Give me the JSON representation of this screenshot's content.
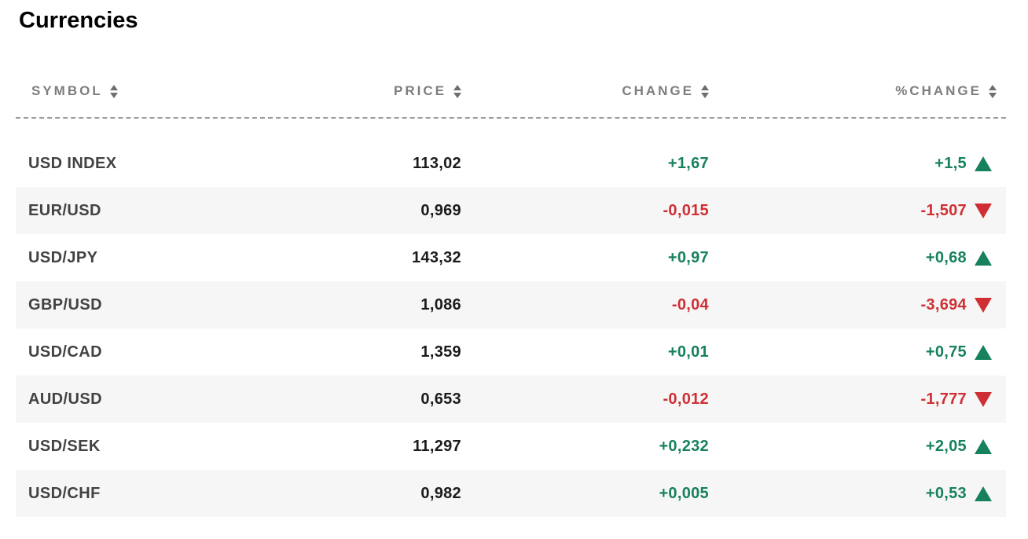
{
  "page": {
    "title": "Currencies"
  },
  "table": {
    "columns": [
      {
        "label": "SYMBOL",
        "sortable": true
      },
      {
        "label": "PRICE",
        "sortable": true
      },
      {
        "label": "CHANGE",
        "sortable": true
      },
      {
        "label": "%CHANGE",
        "sortable": true
      }
    ],
    "rows": [
      {
        "symbol": "USD INDEX",
        "price": "113,02",
        "change": "+1,67",
        "pct_change": "+1,5",
        "direction": "up"
      },
      {
        "symbol": "EUR/USD",
        "price": "0,969",
        "change": "-0,015",
        "pct_change": "-1,507",
        "direction": "down"
      },
      {
        "symbol": "USD/JPY",
        "price": "143,32",
        "change": "+0,97",
        "pct_change": "+0,68",
        "direction": "up"
      },
      {
        "symbol": "GBP/USD",
        "price": "1,086",
        "change": "-0,04",
        "pct_change": "-3,694",
        "direction": "down"
      },
      {
        "symbol": "USD/CAD",
        "price": "1,359",
        "change": "+0,01",
        "pct_change": "+0,75",
        "direction": "up"
      },
      {
        "symbol": "AUD/USD",
        "price": "0,653",
        "change": "-0,012",
        "pct_change": "-1,777",
        "direction": "down"
      },
      {
        "symbol": "USD/SEK",
        "price": "11,297",
        "change": "+0,232",
        "pct_change": "+2,05",
        "direction": "up"
      },
      {
        "symbol": "USD/CHF",
        "price": "0,982",
        "change": "+0,005",
        "pct_change": "+0,53",
        "direction": "up"
      }
    ]
  },
  "colors": {
    "positive": "#17815d",
    "negative": "#cf2f34",
    "header_text": "#7d7d7d",
    "row_stripe": "#f6f6f6"
  },
  "icons": {
    "sort": "sort-up-down-arrows",
    "up": "triangle-up",
    "down": "triangle-down"
  }
}
